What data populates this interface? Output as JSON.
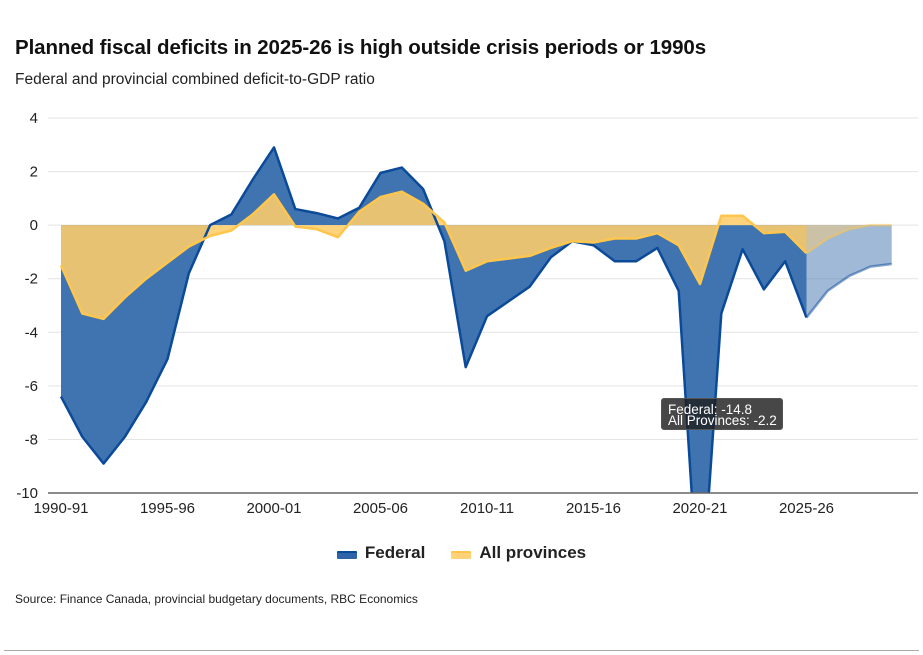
{
  "title": "Planned fiscal deficits in 2025-26 is high outside crisis periods or 1990s",
  "subtitle": "Federal and provincial combined deficit-to-GDP ratio",
  "source": "Source: Finance Canada, provincial budgetary documents, RBC Economics",
  "tooltip": {
    "line1": "Federal: -14.8",
    "line2": "All Provinces: -2.2"
  },
  "legend": [
    {
      "label": "Federal",
      "color": "#0b4a99"
    },
    {
      "label": "All provinces",
      "color": "#ffc64d"
    }
  ],
  "chart_data": {
    "type": "area",
    "title": "Planned fiscal deficits in 2025-26 is high outside crisis periods or 1990s",
    "subtitle": "Federal and provincial combined deficit-to-GDP ratio",
    "xlabel": "",
    "ylabel": "",
    "ylim": [
      -10,
      4
    ],
    "yticks": [
      4,
      2,
      0,
      -2,
      -4,
      -6,
      -8,
      -10
    ],
    "grid": true,
    "legend_position": "bottom",
    "projection_start": "2025-26",
    "x": [
      "1990-91",
      "1991-92",
      "1992-93",
      "1993-94",
      "1994-95",
      "1995-96",
      "1996-97",
      "1997-98",
      "1998-99",
      "1999-00",
      "2000-01",
      "2001-02",
      "2002-03",
      "2003-04",
      "2004-05",
      "2005-06",
      "2006-07",
      "2007-08",
      "2008-09",
      "2009-10",
      "2010-11",
      "2011-12",
      "2012-13",
      "2013-14",
      "2014-15",
      "2015-16",
      "2016-17",
      "2017-18",
      "2018-19",
      "2019-20",
      "2020-21",
      "2021-22",
      "2022-23",
      "2023-24",
      "2024-25",
      "2025-26",
      "2026-27",
      "2027-28",
      "2028-29",
      "2029-30"
    ],
    "xtick_labels": [
      "1990-91",
      "1995-96",
      "2000-01",
      "2005-06",
      "2010-11",
      "2015-16",
      "2020-21",
      "2025-26"
    ],
    "series": [
      {
        "name": "Federal",
        "color": "#0b4a99",
        "fill": "#3f74b0",
        "values": [
          -6.4,
          -7.9,
          -8.9,
          -7.9,
          -6.6,
          -5.0,
          -1.8,
          0.0,
          0.4,
          1.7,
          2.9,
          0.6,
          0.45,
          0.25,
          0.65,
          1.95,
          2.15,
          1.35,
          -0.6,
          -5.3,
          -3.4,
          -2.85,
          -2.3,
          -1.2,
          -0.6,
          -0.75,
          -1.35,
          -1.35,
          -0.85,
          -2.45,
          -14.8,
          -3.3,
          -0.9,
          -2.4,
          -1.35,
          -3.45,
          -2.45,
          -1.9,
          -1.55,
          -1.45
        ]
      },
      {
        "name": "All provinces",
        "color": "#ffc64d",
        "fill": "#ffcd6a",
        "values": [
          -1.5,
          -3.3,
          -3.5,
          -2.7,
          -2.0,
          -1.4,
          -0.8,
          -0.4,
          -0.2,
          0.4,
          1.15,
          -0.05,
          -0.15,
          -0.45,
          0.5,
          1.05,
          1.25,
          0.8,
          0.1,
          -1.7,
          -1.35,
          -1.25,
          -1.15,
          -0.85,
          -0.6,
          -0.65,
          -0.5,
          -0.5,
          -0.3,
          -0.75,
          -2.2,
          0.35,
          0.35,
          -0.3,
          -0.25,
          -1.05,
          -0.5,
          -0.15,
          0.0,
          0.0
        ]
      }
    ],
    "annotations": [
      {
        "x": "2020-21",
        "text": "Federal: -14.8\nAll Provinces: -2.2",
        "type": "tooltip"
      }
    ]
  }
}
